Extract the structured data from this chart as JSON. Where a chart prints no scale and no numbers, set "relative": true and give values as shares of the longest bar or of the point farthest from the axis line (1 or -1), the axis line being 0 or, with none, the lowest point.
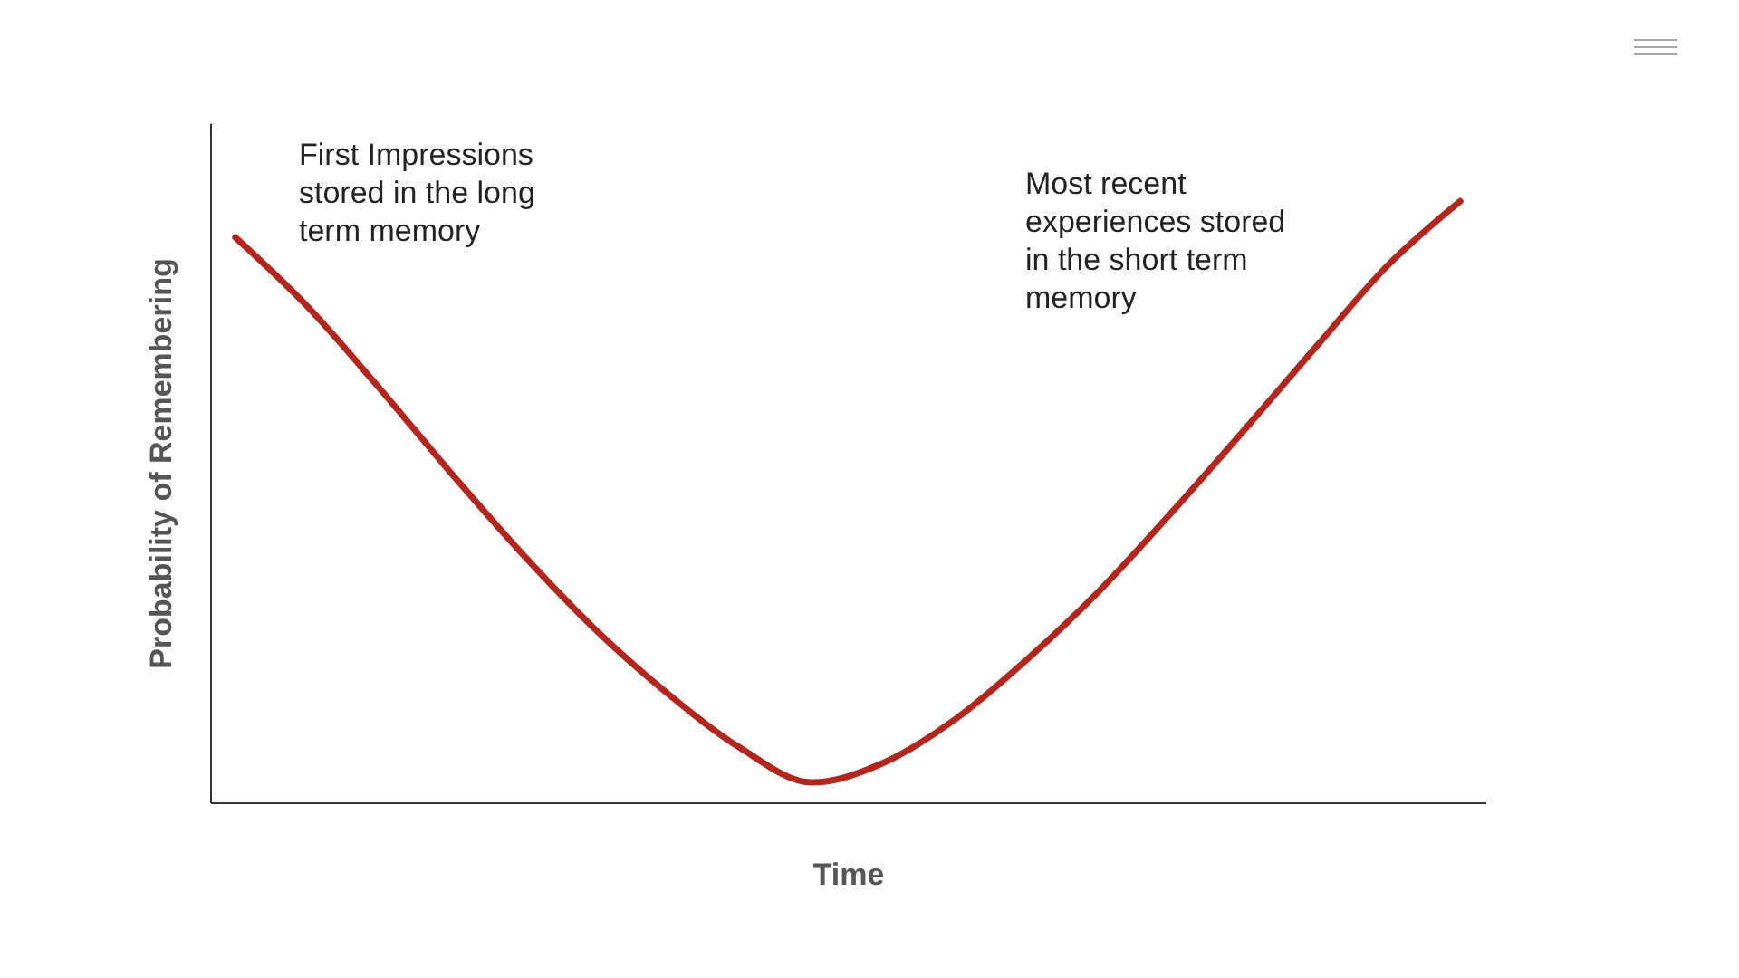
{
  "chart_data": {
    "type": "line",
    "relative": true,
    "xlabel": "Time",
    "ylabel": "Probability of Remembering",
    "tick_labels": false,
    "legend": false,
    "marker": "none",
    "line_style": "solid",
    "categories": [
      null,
      null,
      null,
      null,
      null,
      null,
      null,
      null,
      null,
      null,
      null,
      null,
      null,
      null,
      null,
      null,
      null,
      null
    ],
    "series": [
      {
        "color": "#b3261e",
        "values": [
          0.94,
          0.825,
          0.689,
          0.547,
          0.411,
          0.287,
          0.181,
          0.091,
          0.033,
          0.066,
          0.139,
          0.239,
          0.353,
          0.483,
          0.619,
          0.758,
          0.894,
          1
        ]
      }
    ],
    "annotations": [
      "First Impressions stored in the long term memory",
      "Most recent experiences stored in the short term memory"
    ]
  }
}
